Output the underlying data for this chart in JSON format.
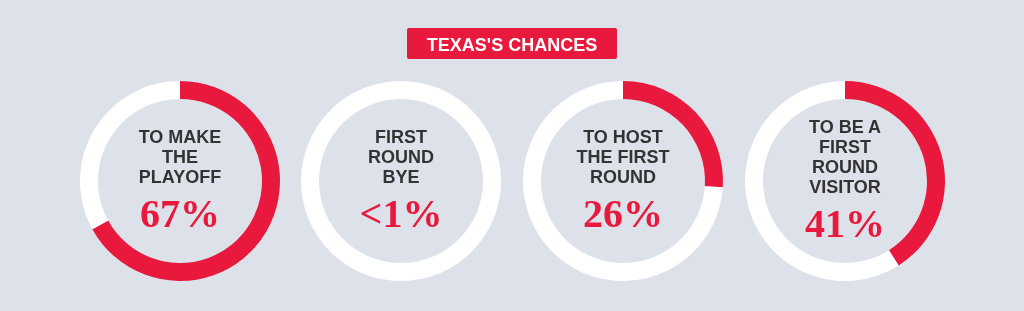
{
  "chart_data": [
    {
      "type": "other",
      "title": "TEXAS'S CHANCES",
      "color": "#e8193c"
    },
    {
      "type": "donut",
      "title": "TO MAKE\nTHE\nPLAYOFF",
      "categories": [
        null,
        null
      ],
      "values": [
        67,
        33
      ],
      "colors": [
        "#e8193c",
        "#ffffff"
      ],
      "subtitle": "67%"
    },
    {
      "type": "donut",
      "title": "FIRST\nROUND\nBYE",
      "categories": [
        null,
        null
      ],
      "values": [
        0,
        100
      ],
      "colors": [
        "#e8193c",
        "#ffffff"
      ],
      "subtitle": "<1%"
    },
    {
      "type": "donut",
      "title": "TO HOST\nTHE FIRST\nROUND",
      "categories": [
        null,
        null
      ],
      "values": [
        26,
        74
      ],
      "colors": [
        "#e8193c",
        "#ffffff"
      ],
      "subtitle": "26%"
    },
    {
      "type": "donut",
      "title": "TO BE A\nFIRST\nROUND\nVISITOR",
      "categories": [
        null,
        null
      ],
      "values": [
        41,
        59
      ],
      "colors": [
        "#e8193c",
        "#ffffff"
      ],
      "subtitle": "41%"
    }
  ]
}
